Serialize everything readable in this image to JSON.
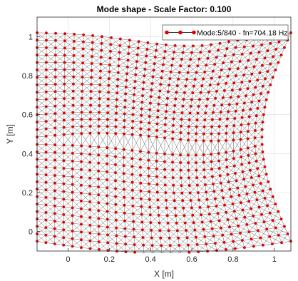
{
  "chart_data": {
    "type": "scatter",
    "title": "Mode shape - Scale Factor: 0.100",
    "xlabel": "X [m]",
    "ylabel": "Y [m]",
    "xlim": [
      -0.15,
      1.08
    ],
    "ylim": [
      -0.1,
      1.1
    ],
    "xticks": [
      "0",
      "0.2",
      "0.4",
      "0.6",
      "0.8",
      "1"
    ],
    "yticks": [
      "0",
      "0.2",
      "0.4",
      "0.6",
      "0.8",
      "1"
    ],
    "xtick_values": [
      0,
      0.2,
      0.4,
      0.6,
      0.8,
      1.0
    ],
    "ytick_values": [
      0,
      0.2,
      0.4,
      0.6,
      0.8,
      1.0
    ],
    "grid": true,
    "legend_position": "top-right",
    "series": [
      {
        "name": "Mode:5/840 - fn=704.18 Hz",
        "color": "#e00000",
        "mesh_line_color": "#333333",
        "grid_nodes": {
          "x_count": 29,
          "y_count": 29,
          "x_range": [
            -0.15,
            1.08
          ],
          "y_range": [
            -0.05,
            1.02
          ]
        }
      }
    ]
  }
}
